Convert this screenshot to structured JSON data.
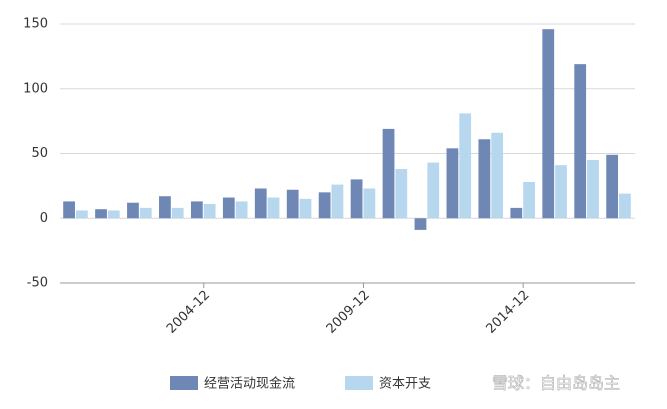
{
  "chart_data": {
    "type": "bar",
    "categories": [
      null,
      null,
      null,
      null,
      "2004-12",
      null,
      null,
      null,
      null,
      "2009-12",
      null,
      null,
      null,
      null,
      "2014-12",
      null,
      null,
      null
    ],
    "series": [
      {
        "name": "经营活动现金流",
        "color": "#6f87b5",
        "values": [
          13,
          7,
          12,
          17,
          13,
          16,
          23,
          22,
          20,
          30,
          69,
          -9,
          54,
          61,
          8,
          146,
          119,
          49
        ]
      },
      {
        "name": "资本开支",
        "color": "#b7d7ef",
        "values": [
          6,
          6,
          8,
          8,
          11,
          13,
          16,
          15,
          26,
          23,
          38,
          43,
          81,
          66,
          28,
          41,
          45,
          19
        ]
      }
    ],
    "ylim": [
      -50,
      150
    ],
    "yticks": [
      -50,
      0,
      50,
      100,
      150
    ],
    "grid": true,
    "watermark": "雪球：自由岛岛主"
  }
}
